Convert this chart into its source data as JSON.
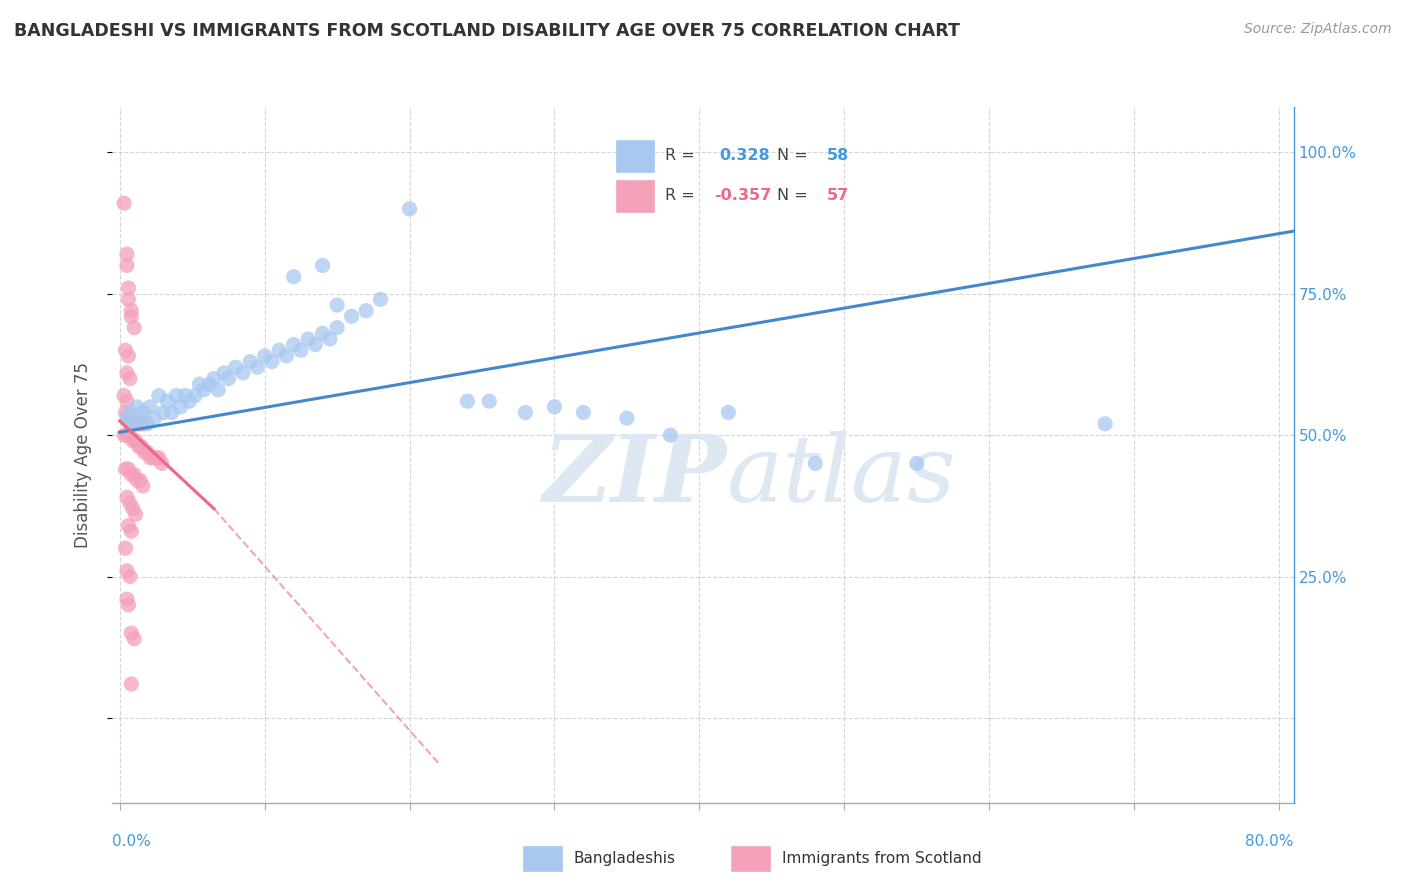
{
  "title": "BANGLADESHI VS IMMIGRANTS FROM SCOTLAND DISABILITY AGE OVER 75 CORRELATION CHART",
  "source": "Source: ZipAtlas.com",
  "ylabel": "Disability Age Over 75",
  "R_blue": 0.328,
  "N_blue": 58,
  "R_pink": -0.357,
  "N_pink": 57,
  "legend_label_blue": "Bangladeshis",
  "legend_label_pink": "Immigrants from Scotland",
  "watermark": "ZIPatlas",
  "blue_color": "#A8C8F0",
  "pink_color": "#F4A0B8",
  "blue_line_color": "#4488CC",
  "pink_line_color": "#EE6688",
  "grid_color": "#CCCCCC",
  "title_color": "#444444",
  "right_axis_color": "#4499DD",
  "xlim": [
    -0.005,
    0.81
  ],
  "ylim": [
    -0.15,
    1.08
  ],
  "yticks": [
    0.0,
    0.25,
    0.5,
    0.75,
    1.0
  ],
  "xticks": [
    0.0,
    0.1,
    0.2,
    0.3,
    0.4,
    0.5,
    0.6,
    0.7,
    0.8
  ],
  "blue_scatter": [
    [
      0.005,
      0.53
    ],
    [
      0.007,
      0.54
    ],
    [
      0.009,
      0.52
    ],
    [
      0.012,
      0.55
    ],
    [
      0.014,
      0.53
    ],
    [
      0.016,
      0.54
    ],
    [
      0.019,
      0.52
    ],
    [
      0.021,
      0.55
    ],
    [
      0.024,
      0.53
    ],
    [
      0.027,
      0.57
    ],
    [
      0.03,
      0.54
    ],
    [
      0.033,
      0.56
    ],
    [
      0.036,
      0.54
    ],
    [
      0.039,
      0.57
    ],
    [
      0.042,
      0.55
    ],
    [
      0.045,
      0.57
    ],
    [
      0.048,
      0.56
    ],
    [
      0.052,
      0.57
    ],
    [
      0.055,
      0.59
    ],
    [
      0.058,
      0.58
    ],
    [
      0.062,
      0.59
    ],
    [
      0.065,
      0.6
    ],
    [
      0.068,
      0.58
    ],
    [
      0.072,
      0.61
    ],
    [
      0.075,
      0.6
    ],
    [
      0.08,
      0.62
    ],
    [
      0.085,
      0.61
    ],
    [
      0.09,
      0.63
    ],
    [
      0.095,
      0.62
    ],
    [
      0.1,
      0.64
    ],
    [
      0.105,
      0.63
    ],
    [
      0.11,
      0.65
    ],
    [
      0.115,
      0.64
    ],
    [
      0.12,
      0.66
    ],
    [
      0.125,
      0.65
    ],
    [
      0.13,
      0.67
    ],
    [
      0.135,
      0.66
    ],
    [
      0.14,
      0.68
    ],
    [
      0.145,
      0.67
    ],
    [
      0.15,
      0.69
    ],
    [
      0.16,
      0.71
    ],
    [
      0.17,
      0.72
    ],
    [
      0.18,
      0.74
    ],
    [
      0.12,
      0.78
    ],
    [
      0.14,
      0.8
    ],
    [
      0.15,
      0.73
    ],
    [
      0.2,
      0.9
    ],
    [
      0.24,
      0.56
    ],
    [
      0.255,
      0.56
    ],
    [
      0.28,
      0.54
    ],
    [
      0.3,
      0.55
    ],
    [
      0.32,
      0.54
    ],
    [
      0.35,
      0.53
    ],
    [
      0.38,
      0.5
    ],
    [
      0.42,
      0.54
    ],
    [
      0.48,
      0.45
    ],
    [
      0.55,
      0.45
    ],
    [
      0.68,
      0.52
    ]
  ],
  "pink_scatter": [
    [
      0.003,
      0.91
    ],
    [
      0.005,
      0.82
    ],
    [
      0.005,
      0.8
    ],
    [
      0.006,
      0.76
    ],
    [
      0.006,
      0.74
    ],
    [
      0.008,
      0.72
    ],
    [
      0.008,
      0.71
    ],
    [
      0.01,
      0.69
    ],
    [
      0.004,
      0.65
    ],
    [
      0.006,
      0.64
    ],
    [
      0.005,
      0.61
    ],
    [
      0.007,
      0.6
    ],
    [
      0.003,
      0.57
    ],
    [
      0.005,
      0.56
    ],
    [
      0.004,
      0.54
    ],
    [
      0.006,
      0.53
    ],
    [
      0.007,
      0.52
    ],
    [
      0.008,
      0.52
    ],
    [
      0.01,
      0.52
    ],
    [
      0.012,
      0.52
    ],
    [
      0.014,
      0.52
    ],
    [
      0.016,
      0.52
    ],
    [
      0.003,
      0.5
    ],
    [
      0.005,
      0.5
    ],
    [
      0.007,
      0.5
    ],
    [
      0.009,
      0.49
    ],
    [
      0.011,
      0.49
    ],
    [
      0.013,
      0.48
    ],
    [
      0.015,
      0.48
    ],
    [
      0.017,
      0.47
    ],
    [
      0.019,
      0.47
    ],
    [
      0.021,
      0.46
    ],
    [
      0.023,
      0.46
    ],
    [
      0.025,
      0.46
    ],
    [
      0.027,
      0.46
    ],
    [
      0.029,
      0.45
    ],
    [
      0.004,
      0.44
    ],
    [
      0.006,
      0.44
    ],
    [
      0.008,
      0.43
    ],
    [
      0.01,
      0.43
    ],
    [
      0.012,
      0.42
    ],
    [
      0.014,
      0.42
    ],
    [
      0.016,
      0.41
    ],
    [
      0.005,
      0.39
    ],
    [
      0.007,
      0.38
    ],
    [
      0.009,
      0.37
    ],
    [
      0.011,
      0.36
    ],
    [
      0.006,
      0.34
    ],
    [
      0.008,
      0.33
    ],
    [
      0.004,
      0.3
    ],
    [
      0.005,
      0.26
    ],
    [
      0.007,
      0.25
    ],
    [
      0.005,
      0.21
    ],
    [
      0.006,
      0.2
    ],
    [
      0.008,
      0.15
    ],
    [
      0.01,
      0.14
    ],
    [
      0.008,
      0.06
    ]
  ],
  "blue_trend": [
    0.0,
    0.82,
    0.505,
    0.865
  ],
  "pink_trend_solid": [
    0.0,
    0.065,
    0.525,
    0.37
  ],
  "pink_trend_dashed": [
    0.065,
    0.22,
    0.37,
    -0.08
  ]
}
